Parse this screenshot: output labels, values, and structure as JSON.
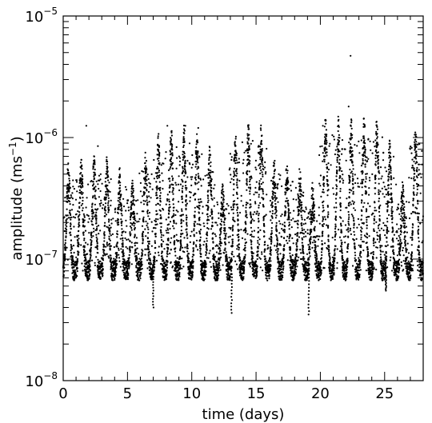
{
  "chart_data": {
    "type": "scatter",
    "xlabel": "time (days)",
    "ylabel_main": "amplitude (ms",
    "ylabel_sup": "−1",
    "ylabel_close": ")",
    "x_scale": "linear",
    "y_scale": "log",
    "xlim": [
      0,
      28
    ],
    "ylim": [
      1e-08,
      1e-05
    ],
    "x_ticks": [
      {
        "value": 0,
        "label": "0"
      },
      {
        "value": 5,
        "label": "5"
      },
      {
        "value": 10,
        "label": "10"
      },
      {
        "value": 15,
        "label": "15"
      },
      {
        "value": 20,
        "label": "20"
      },
      {
        "value": 25,
        "label": "25"
      }
    ],
    "y_ticks": [
      {
        "value": 1e-08,
        "base": "10",
        "exp": "−8"
      },
      {
        "value": 1e-07,
        "base": "10",
        "exp": "−7"
      },
      {
        "value": 1e-06,
        "base": "10",
        "exp": "−6"
      },
      {
        "value": 1e-05,
        "base": "10",
        "exp": "−5"
      }
    ],
    "grid": false,
    "marker_color": "#000000",
    "daily_cycles": [
      {
        "t": 0.4,
        "peak": 4.5e-07
      },
      {
        "t": 1.4,
        "peak": 4.8e-07
      },
      {
        "t": 2.4,
        "peak": 5e-07
      },
      {
        "t": 3.4,
        "peak": 5e-07
      },
      {
        "t": 4.4,
        "peak": 4e-07
      },
      {
        "t": 5.4,
        "peak": 3.2e-07
      },
      {
        "t": 6.4,
        "peak": 5.5e-07
      },
      {
        "t": 7.4,
        "peak": 7.5e-07
      },
      {
        "t": 8.4,
        "peak": 8.5e-07
      },
      {
        "t": 9.4,
        "peak": 9e-07
      },
      {
        "t": 10.4,
        "peak": 8e-07
      },
      {
        "t": 11.4,
        "peak": 6e-07
      },
      {
        "t": 12.4,
        "peak": 3e-07
      },
      {
        "t": 13.4,
        "peak": 8e-07
      },
      {
        "t": 14.4,
        "peak": 9.5e-07
      },
      {
        "t": 15.4,
        "peak": 9e-07
      },
      {
        "t": 16.4,
        "peak": 5e-07
      },
      {
        "t": 17.4,
        "peak": 4.5e-07
      },
      {
        "t": 18.4,
        "peak": 4e-07
      },
      {
        "t": 19.4,
        "peak": 3e-07
      },
      {
        "t": 20.4,
        "peak": 1.05e-06
      },
      {
        "t": 21.4,
        "peak": 1.05e-06
      },
      {
        "t": 22.4,
        "peak": 1e-06
      },
      {
        "t": 23.4,
        "peak": 1.05e-06
      },
      {
        "t": 24.4,
        "peak": 1.05e-06
      },
      {
        "t": 25.4,
        "peak": 7e-07
      },
      {
        "t": 26.4,
        "peak": 3e-07
      },
      {
        "t": 27.4,
        "peak": 9e-07
      }
    ],
    "baseline": 8e-08,
    "lowest_spikes": [
      {
        "x": 7.0,
        "y": 4e-08
      },
      {
        "x": 13.1,
        "y": 3.6e-08
      },
      {
        "x": 19.1,
        "y": 3.5e-08
      },
      {
        "x": 25.1,
        "y": 5.5e-08
      }
    ],
    "outliers": [
      {
        "x": 1.8,
        "y": 1.25e-06
      },
      {
        "x": 2.7,
        "y": 8.5e-07
      },
      {
        "x": 8.1,
        "y": 1.25e-06
      },
      {
        "x": 9.5,
        "y": 1.25e-06
      },
      {
        "x": 10.5,
        "y": 1.2e-06
      },
      {
        "x": 20.2,
        "y": 1.25e-06
      },
      {
        "x": 22.2,
        "y": 1.8e-06
      },
      {
        "x": 22.35,
        "y": 4.7e-06
      }
    ]
  }
}
